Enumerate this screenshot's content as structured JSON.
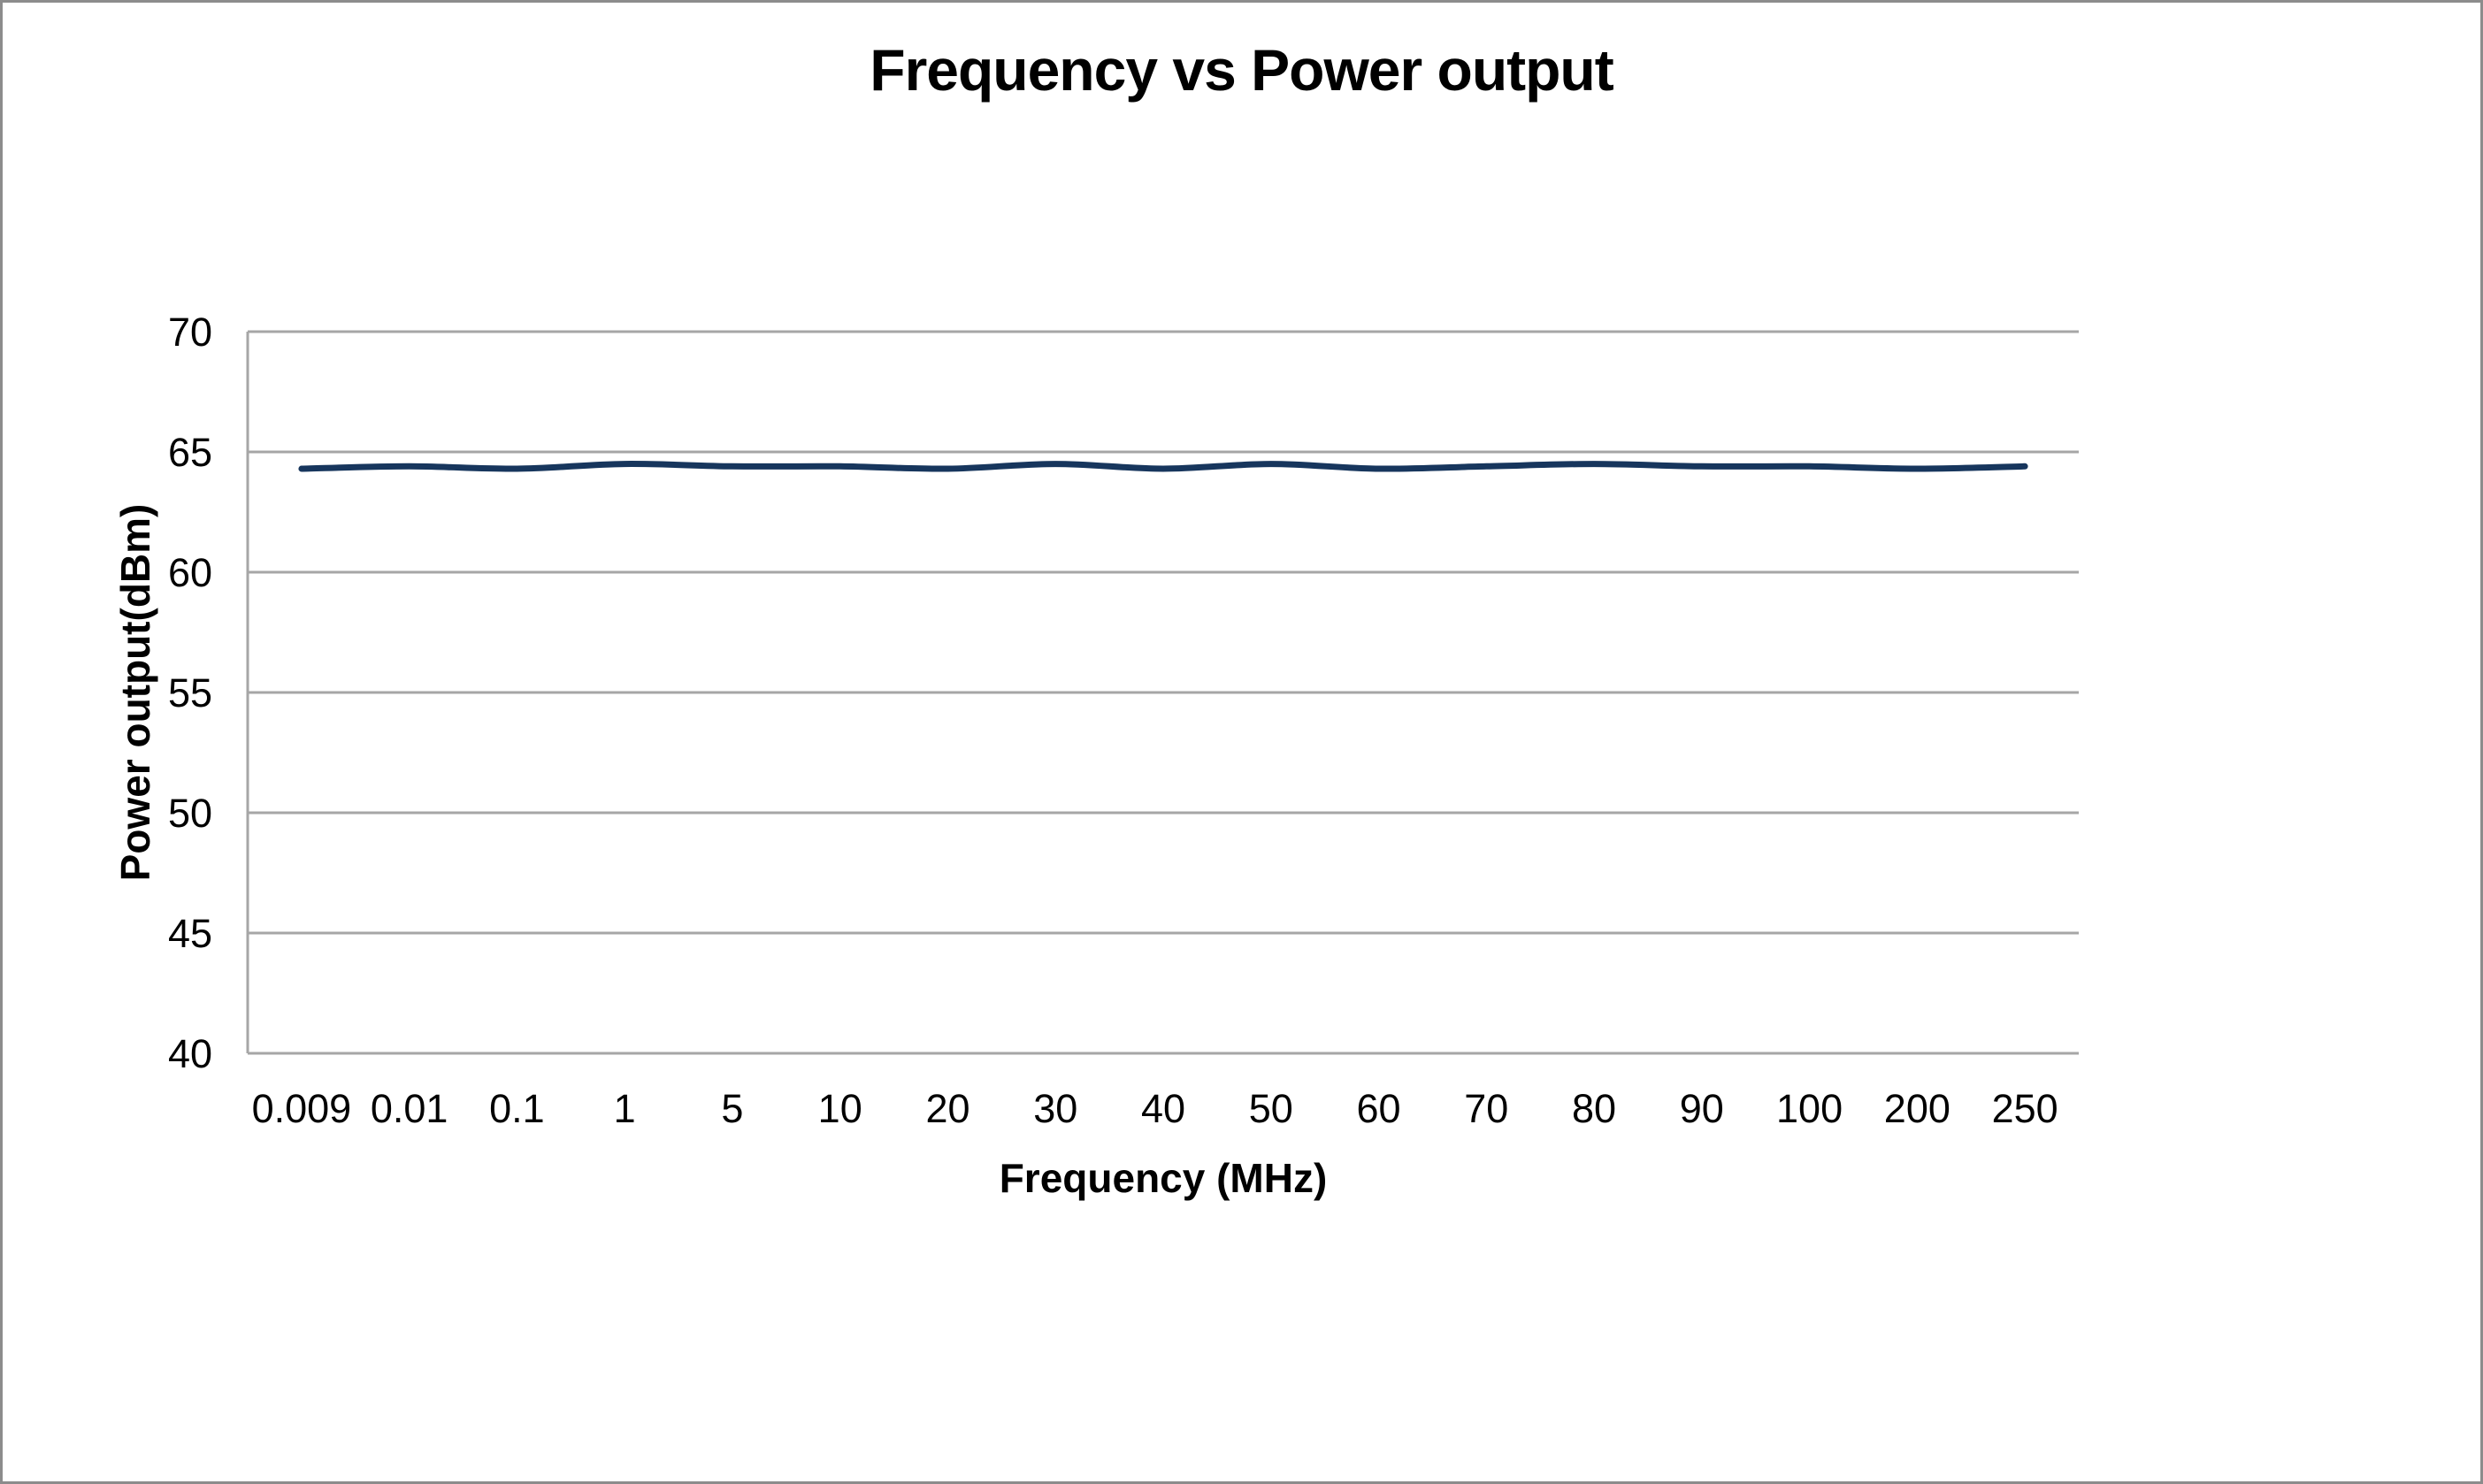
{
  "chart_data": {
    "type": "line",
    "title": "Frequency vs Power output",
    "xlabel": "Frequency (MHz)",
    "ylabel": "Power output(dBm)",
    "categories": [
      "0.009",
      "0.01",
      "0.1",
      "1",
      "5",
      "10",
      "20",
      "30",
      "40",
      "50",
      "60",
      "70",
      "80",
      "90",
      "100",
      "200",
      "250"
    ],
    "series": [
      {
        "name": "Power output",
        "values": [
          64.3,
          64.4,
          64.3,
          64.5,
          64.4,
          64.4,
          64.3,
          64.5,
          64.3,
          64.5,
          64.3,
          64.4,
          64.5,
          64.4,
          64.4,
          64.3,
          64.4
        ]
      }
    ],
    "ylim": [
      40,
      70
    ],
    "yticks": [
      40,
      45,
      50,
      55,
      60,
      65,
      70
    ],
    "grid": "horizontal",
    "legend": "none",
    "line_smoothed": true,
    "colors": {
      "series": "#17365D",
      "gridline": "#A6A6A6",
      "axis": "#A6A6A6",
      "text": "#000000",
      "background": "#FFFFFF",
      "frame_border": "#8C8C8C"
    }
  }
}
